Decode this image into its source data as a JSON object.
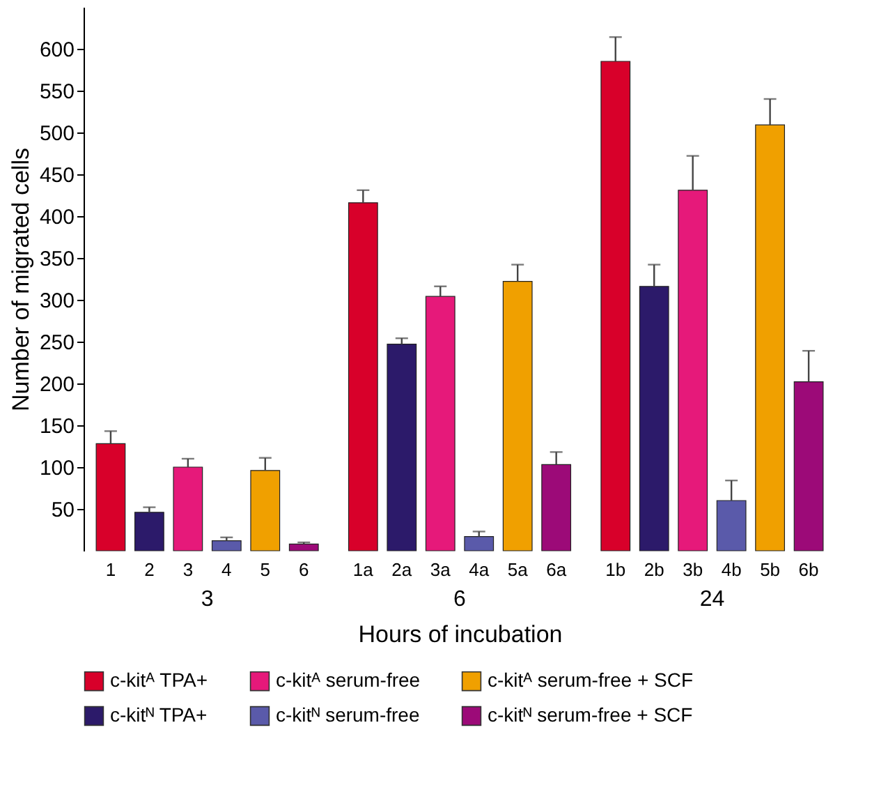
{
  "chart_data": {
    "type": "bar",
    "xlabel": "Hours of incubation",
    "ylabel": "Number of migrated cells",
    "categories": [
      "3",
      "6",
      "24"
    ],
    "series": [
      {
        "name": "c-kitᴬ TPA+",
        "color": "#d8002a",
        "values": [
          128,
          416,
          585
        ],
        "errors": [
          15,
          15,
          29
        ]
      },
      {
        "name": "c-kitᴺ TPA+",
        "color": "#2c1a6a",
        "values": [
          46,
          247,
          316
        ],
        "errors": [
          6,
          7,
          26
        ]
      },
      {
        "name": "c-kitᴬ serum-free",
        "color": "#e6197a",
        "values": [
          100,
          304,
          431
        ],
        "errors": [
          10,
          12,
          41
        ]
      },
      {
        "name": "c-kitᴺ serum-free",
        "color": "#5a5aaa",
        "values": [
          12,
          17,
          60
        ],
        "errors": [
          4,
          6,
          24
        ]
      },
      {
        "name": "c-kitᴬ serum-free + SCF",
        "color": "#f0a000",
        "values": [
          96,
          322,
          509
        ],
        "errors": [
          15,
          20,
          31
        ]
      },
      {
        "name": "c-kitᴺ serum-free + SCF",
        "color": "#9c0a78",
        "values": [
          8,
          103,
          202
        ],
        "errors": [
          2,
          15,
          37
        ]
      }
    ],
    "annotations": [
      "1",
      "2",
      "3",
      "4",
      "5",
      "6",
      "1a",
      "2a",
      "3a",
      "4a",
      "5a",
      "6a",
      "1b",
      "2b",
      "3b",
      "4b",
      "5b",
      "6b"
    ],
    "ylim": [
      0,
      650
    ],
    "yticks": [
      50,
      100,
      150,
      200,
      250,
      300,
      350,
      400,
      450,
      500,
      550,
      600
    ],
    "grid": false,
    "legend": "bottom"
  }
}
